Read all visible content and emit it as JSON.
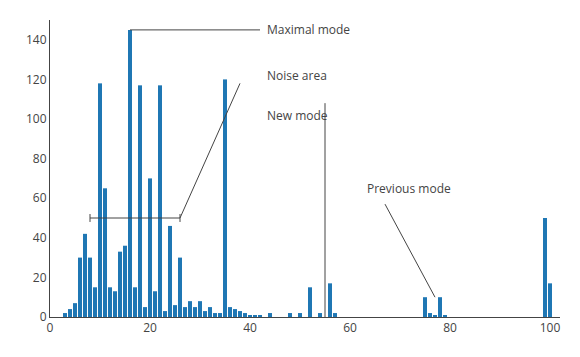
{
  "chart_data": {
    "type": "bar",
    "x": [
      3,
      4,
      5,
      6,
      7,
      8,
      9,
      10,
      11,
      12,
      13,
      14,
      15,
      16,
      17,
      18,
      19,
      20,
      21,
      22,
      23,
      24,
      25,
      26,
      27,
      28,
      29,
      30,
      31,
      32,
      33,
      34,
      35,
      36,
      37,
      38,
      39,
      40,
      41,
      42,
      43,
      44,
      45,
      46,
      47,
      48,
      49,
      50,
      51,
      52,
      53,
      54,
      55,
      56,
      57,
      58,
      59,
      60,
      61,
      62,
      63,
      64,
      65,
      66,
      67,
      68,
      69,
      70,
      71,
      72,
      73,
      74,
      75,
      76,
      77,
      78,
      79,
      80,
      99,
      100
    ],
    "values": [
      2,
      4,
      7,
      30,
      42,
      30,
      15,
      118,
      65,
      15,
      13,
      33,
      36,
      145,
      15,
      117,
      5,
      70,
      13,
      117,
      3,
      46,
      6,
      30,
      5,
      8,
      5,
      8,
      3,
      5,
      2,
      2,
      120,
      5,
      4,
      3,
      2,
      1,
      1,
      1,
      0,
      2,
      0,
      0,
      0,
      2,
      0,
      2,
      0,
      15,
      0,
      2,
      0,
      17,
      2,
      0,
      0,
      0,
      0,
      0,
      0,
      0,
      0,
      0,
      0,
      0,
      0,
      0,
      0,
      0,
      0,
      0,
      10,
      2,
      1,
      10,
      1,
      0,
      50,
      17
    ],
    "xlim": [
      0,
      102
    ],
    "ylim": [
      0,
      150
    ],
    "xticks": [
      0,
      20,
      40,
      60,
      80,
      100
    ],
    "yticks": [
      0,
      20,
      40,
      60,
      80,
      100,
      120,
      140
    ],
    "grid": false,
    "annotations": [
      {
        "text": "Maximal mode",
        "x": 43,
        "y": 145,
        "lines": [
          [
            [
              16,
              145
            ],
            [
              42,
              145
            ]
          ]
        ]
      },
      {
        "text": "Noise area",
        "x": 43,
        "y": 122,
        "lines": [
          [
            [
              8,
              50
            ],
            [
              26,
              50
            ]
          ],
          [
            [
              8,
              48
            ],
            [
              8,
              52
            ]
          ],
          [
            [
              26,
              48
            ],
            [
              26,
              52
            ]
          ],
          [
            [
              26,
              50
            ],
            [
              38,
              118
            ]
          ]
        ]
      },
      {
        "text": "New mode",
        "x": 43,
        "y": 102,
        "lines": [
          [
            [
              55,
              0
            ],
            [
              55,
              108
            ]
          ]
        ]
      },
      {
        "text": "Previous mode",
        "x": 63,
        "y": 65,
        "lines": [
          [
            [
              77,
              10
            ],
            [
              67,
              57
            ]
          ]
        ]
      }
    ]
  }
}
